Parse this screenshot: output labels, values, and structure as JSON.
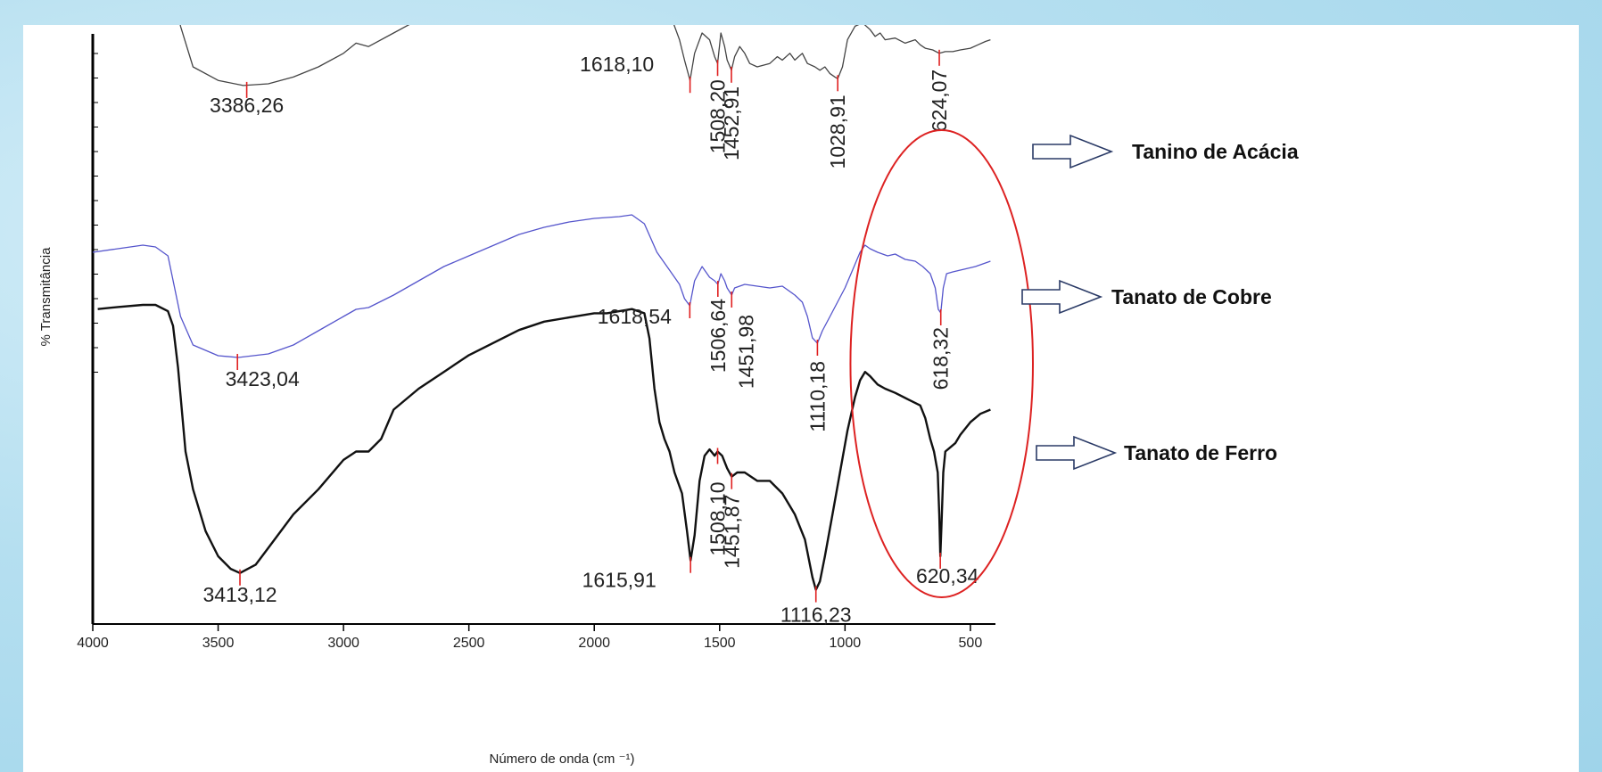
{
  "chart_data": {
    "type": "line",
    "xlabel": "Número de onda (cm ⁻¹)",
    "ylabel": "% Transmitância",
    "xlim": [
      4000,
      400
    ],
    "x_reversed": true,
    "x_ticks": [
      4000,
      3500,
      3000,
      2500,
      2000,
      1500,
      1000,
      500
    ],
    "grid": false,
    "legend_placement": "right",
    "series": [
      {
        "name": "Tanino de Acácia",
        "color": "#444444",
        "points": [
          [
            4000,
            0.91
          ],
          [
            3900,
            0.925
          ],
          [
            3800,
            0.935
          ],
          [
            3750,
            0.93
          ],
          [
            3700,
            0.9
          ],
          [
            3650,
            0.72
          ],
          [
            3600,
            0.6
          ],
          [
            3500,
            0.56
          ],
          [
            3400,
            0.545
          ],
          [
            3300,
            0.55
          ],
          [
            3200,
            0.57
          ],
          [
            3100,
            0.6
          ],
          [
            3000,
            0.64
          ],
          [
            2950,
            0.67
          ],
          [
            2900,
            0.66
          ],
          [
            2800,
            0.7
          ],
          [
            2700,
            0.74
          ],
          [
            2600,
            0.77
          ],
          [
            2500,
            0.8
          ],
          [
            2400,
            0.83
          ],
          [
            2300,
            0.86
          ],
          [
            2200,
            0.88
          ],
          [
            2100,
            0.895
          ],
          [
            2000,
            0.905
          ],
          [
            1900,
            0.91
          ],
          [
            1850,
            0.905
          ],
          [
            1800,
            0.88
          ],
          [
            1750,
            0.82
          ],
          [
            1700,
            0.76
          ],
          [
            1660,
            0.68
          ],
          [
            1640,
            0.62
          ],
          [
            1618,
            0.56
          ],
          [
            1600,
            0.64
          ],
          [
            1570,
            0.7
          ],
          [
            1540,
            0.68
          ],
          [
            1520,
            0.63
          ],
          [
            1508,
            0.61
          ],
          [
            1495,
            0.7
          ],
          [
            1480,
            0.66
          ],
          [
            1470,
            0.62
          ],
          [
            1453,
            0.59
          ],
          [
            1440,
            0.63
          ],
          [
            1420,
            0.66
          ],
          [
            1400,
            0.64
          ],
          [
            1380,
            0.61
          ],
          [
            1350,
            0.6
          ],
          [
            1300,
            0.61
          ],
          [
            1270,
            0.63
          ],
          [
            1250,
            0.62
          ],
          [
            1220,
            0.64
          ],
          [
            1200,
            0.62
          ],
          [
            1170,
            0.64
          ],
          [
            1150,
            0.61
          ],
          [
            1120,
            0.6
          ],
          [
            1100,
            0.59
          ],
          [
            1080,
            0.6
          ],
          [
            1060,
            0.58
          ],
          [
            1040,
            0.57
          ],
          [
            1029,
            0.565
          ],
          [
            1010,
            0.6
          ],
          [
            990,
            0.68
          ],
          [
            960,
            0.72
          ],
          [
            930,
            0.73
          ],
          [
            900,
            0.71
          ],
          [
            880,
            0.69
          ],
          [
            860,
            0.7
          ],
          [
            840,
            0.68
          ],
          [
            800,
            0.685
          ],
          [
            760,
            0.67
          ],
          [
            720,
            0.68
          ],
          [
            700,
            0.665
          ],
          [
            680,
            0.655
          ],
          [
            650,
            0.65
          ],
          [
            624,
            0.64
          ],
          [
            600,
            0.645
          ],
          [
            570,
            0.645
          ],
          [
            540,
            0.65
          ],
          [
            500,
            0.655
          ],
          [
            470,
            0.665
          ],
          [
            440,
            0.675
          ],
          [
            420,
            0.68
          ]
        ]
      },
      {
        "name": "Tanato de Cobre",
        "color": "#5555cc",
        "points": [
          [
            4000,
            0.5
          ],
          [
            3900,
            0.51
          ],
          [
            3800,
            0.52
          ],
          [
            3750,
            0.515
          ],
          [
            3700,
            0.49
          ],
          [
            3650,
            0.32
          ],
          [
            3600,
            0.24
          ],
          [
            3500,
            0.21
          ],
          [
            3420,
            0.205
          ],
          [
            3300,
            0.215
          ],
          [
            3200,
            0.24
          ],
          [
            3100,
            0.28
          ],
          [
            3000,
            0.32
          ],
          [
            2950,
            0.34
          ],
          [
            2900,
            0.345
          ],
          [
            2800,
            0.38
          ],
          [
            2700,
            0.42
          ],
          [
            2600,
            0.46
          ],
          [
            2500,
            0.49
          ],
          [
            2400,
            0.52
          ],
          [
            2300,
            0.55
          ],
          [
            2200,
            0.57
          ],
          [
            2100,
            0.585
          ],
          [
            2000,
            0.595
          ],
          [
            1900,
            0.6
          ],
          [
            1850,
            0.605
          ],
          [
            1800,
            0.58
          ],
          [
            1750,
            0.5
          ],
          [
            1700,
            0.45
          ],
          [
            1660,
            0.41
          ],
          [
            1640,
            0.37
          ],
          [
            1619,
            0.35
          ],
          [
            1600,
            0.42
          ],
          [
            1570,
            0.46
          ],
          [
            1540,
            0.43
          ],
          [
            1520,
            0.42
          ],
          [
            1507,
            0.41
          ],
          [
            1495,
            0.44
          ],
          [
            1480,
            0.42
          ],
          [
            1470,
            0.4
          ],
          [
            1452,
            0.38
          ],
          [
            1440,
            0.4
          ],
          [
            1400,
            0.41
          ],
          [
            1350,
            0.405
          ],
          [
            1300,
            0.4
          ],
          [
            1250,
            0.405
          ],
          [
            1200,
            0.38
          ],
          [
            1170,
            0.36
          ],
          [
            1150,
            0.32
          ],
          [
            1130,
            0.26
          ],
          [
            1110,
            0.245
          ],
          [
            1090,
            0.28
          ],
          [
            1060,
            0.32
          ],
          [
            1030,
            0.36
          ],
          [
            1000,
            0.4
          ],
          [
            970,
            0.45
          ],
          [
            940,
            0.5
          ],
          [
            920,
            0.52
          ],
          [
            900,
            0.51
          ],
          [
            870,
            0.5
          ],
          [
            830,
            0.49
          ],
          [
            800,
            0.495
          ],
          [
            760,
            0.48
          ],
          [
            720,
            0.475
          ],
          [
            690,
            0.46
          ],
          [
            660,
            0.44
          ],
          [
            640,
            0.4
          ],
          [
            628,
            0.34
          ],
          [
            618,
            0.33
          ],
          [
            608,
            0.4
          ],
          [
            595,
            0.44
          ],
          [
            570,
            0.445
          ],
          [
            540,
            0.45
          ],
          [
            510,
            0.455
          ],
          [
            480,
            0.46
          ],
          [
            440,
            0.47
          ],
          [
            420,
            0.475
          ]
        ]
      },
      {
        "name": "Tanato de Ferro",
        "color": "#111111",
        "points": [
          [
            3980,
            0.29
          ],
          [
            3900,
            0.295
          ],
          [
            3800,
            0.3
          ],
          [
            3750,
            0.3
          ],
          [
            3700,
            0.285
          ],
          [
            3680,
            0.25
          ],
          [
            3660,
            0.15
          ],
          [
            3630,
            -0.05
          ],
          [
            3600,
            -0.14
          ],
          [
            3550,
            -0.24
          ],
          [
            3500,
            -0.3
          ],
          [
            3450,
            -0.33
          ],
          [
            3413,
            -0.34
          ],
          [
            3350,
            -0.32
          ],
          [
            3300,
            -0.28
          ],
          [
            3200,
            -0.2
          ],
          [
            3100,
            -0.14
          ],
          [
            3000,
            -0.07
          ],
          [
            2950,
            -0.05
          ],
          [
            2900,
            -0.05
          ],
          [
            2850,
            -0.02
          ],
          [
            2800,
            0.05
          ],
          [
            2700,
            0.1
          ],
          [
            2600,
            0.14
          ],
          [
            2500,
            0.18
          ],
          [
            2400,
            0.21
          ],
          [
            2300,
            0.24
          ],
          [
            2200,
            0.26
          ],
          [
            2100,
            0.27
          ],
          [
            2000,
            0.28
          ],
          [
            1950,
            0.28
          ],
          [
            1900,
            0.285
          ],
          [
            1850,
            0.29
          ],
          [
            1800,
            0.28
          ],
          [
            1780,
            0.22
          ],
          [
            1760,
            0.1
          ],
          [
            1740,
            0.02
          ],
          [
            1720,
            -0.02
          ],
          [
            1700,
            -0.05
          ],
          [
            1680,
            -0.1
          ],
          [
            1650,
            -0.15
          ],
          [
            1630,
            -0.24
          ],
          [
            1616,
            -0.31
          ],
          [
            1600,
            -0.25
          ],
          [
            1580,
            -0.12
          ],
          [
            1560,
            -0.06
          ],
          [
            1540,
            -0.045
          ],
          [
            1520,
            -0.06
          ],
          [
            1508,
            -0.05
          ],
          [
            1490,
            -0.06
          ],
          [
            1470,
            -0.09
          ],
          [
            1452,
            -0.11
          ],
          [
            1430,
            -0.1
          ],
          [
            1400,
            -0.1
          ],
          [
            1350,
            -0.12
          ],
          [
            1300,
            -0.12
          ],
          [
            1250,
            -0.15
          ],
          [
            1200,
            -0.2
          ],
          [
            1160,
            -0.26
          ],
          [
            1130,
            -0.35
          ],
          [
            1116,
            -0.38
          ],
          [
            1100,
            -0.36
          ],
          [
            1080,
            -0.3
          ],
          [
            1050,
            -0.2
          ],
          [
            1020,
            -0.1
          ],
          [
            990,
            0.0
          ],
          [
            960,
            0.08
          ],
          [
            940,
            0.12
          ],
          [
            920,
            0.14
          ],
          [
            900,
            0.13
          ],
          [
            870,
            0.11
          ],
          [
            840,
            0.1
          ],
          [
            800,
            0.09
          ],
          [
            750,
            0.075
          ],
          [
            700,
            0.06
          ],
          [
            680,
            0.03
          ],
          [
            660,
            -0.02
          ],
          [
            645,
            -0.05
          ],
          [
            630,
            -0.1
          ],
          [
            624,
            -0.2
          ],
          [
            620,
            -0.3
          ],
          [
            615,
            -0.22
          ],
          [
            608,
            -0.1
          ],
          [
            600,
            -0.05
          ],
          [
            580,
            -0.04
          ],
          [
            560,
            -0.03
          ],
          [
            540,
            -0.01
          ],
          [
            500,
            0.02
          ],
          [
            460,
            0.04
          ],
          [
            420,
            0.05
          ]
        ]
      }
    ],
    "peak_labels": [
      {
        "series": "Tanino de Acácia",
        "x": 3386,
        "text": "3386,26"
      },
      {
        "series": "Tanino de Acácia",
        "x": 1618,
        "text": "1618,10"
      },
      {
        "series": "Tanino de Acácia",
        "x": 1508,
        "text": "1508,20"
      },
      {
        "series": "Tanino de Acácia",
        "x": 1453,
        "text": "1452,91"
      },
      {
        "series": "Tanino de Acácia",
        "x": 1029,
        "text": "1028,91"
      },
      {
        "series": "Tanino de Acácia",
        "x": 624,
        "text": "624,07"
      },
      {
        "series": "Tanato de Cobre",
        "x": 3423,
        "text": "3423,04"
      },
      {
        "series": "Tanato de Cobre",
        "x": 1619,
        "text": "1618,54"
      },
      {
        "series": "Tanato de Cobre",
        "x": 1507,
        "text": "1506,64"
      },
      {
        "series": "Tanato de Cobre",
        "x": 1452,
        "text": "1451,98"
      },
      {
        "series": "Tanato de Cobre",
        "x": 1110,
        "text": "1110,18"
      },
      {
        "series": "Tanato de Cobre",
        "x": 618,
        "text": "618,32"
      },
      {
        "series": "Tanato de Ferro",
        "x": 3413,
        "text": "3413,12"
      },
      {
        "series": "Tanato de Ferro",
        "x": 1616,
        "text": "1615,91"
      },
      {
        "series": "Tanato de Ferro",
        "x": 1508,
        "text": "1508,10"
      },
      {
        "series": "Tanato de Ferro",
        "x": 1452,
        "text": "1451,87"
      },
      {
        "series": "Tanato de Ferro",
        "x": 1116,
        "text": "1116,23"
      },
      {
        "series": "Tanato de Ferro",
        "x": 620,
        "text": "620,34"
      }
    ],
    "highlight": {
      "type": "ellipse",
      "color": "#dd2222",
      "x_from": 900,
      "x_to": 400
    }
  }
}
